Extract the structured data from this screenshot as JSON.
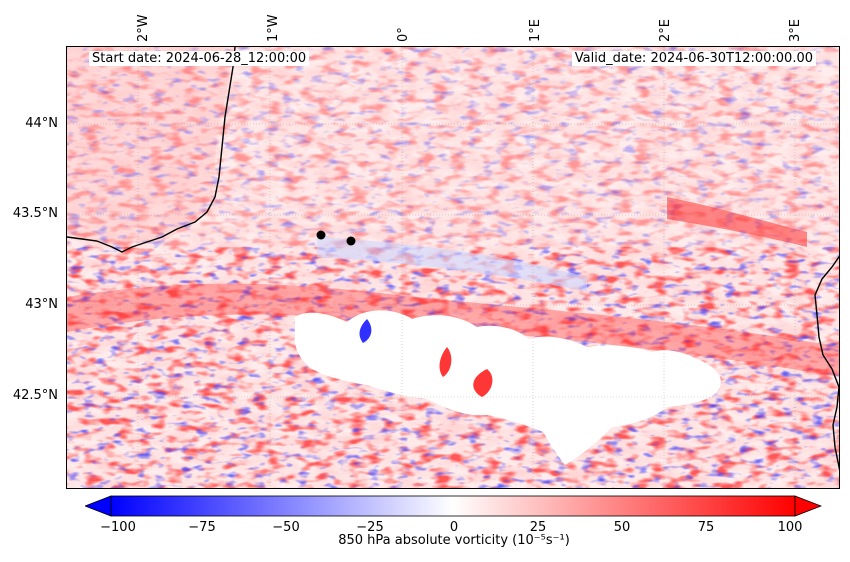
{
  "header": {
    "start_date": "Start date: 2024-06-28_12:00:00",
    "valid_date": "Valid_date: 2024-06-30T12:00:00.00"
  },
  "axes": {
    "top_ticks": [
      "2°W",
      "1°W",
      "0°",
      "1°E",
      "2°E",
      "3°E"
    ],
    "left_ticks": [
      "44°N",
      "43.5°N",
      "43°N",
      "42.5°N"
    ]
  },
  "colorbar": {
    "label": "850 hPa absolute vorticity (10$^{-5}$s$^{-1}$)",
    "label_display": "850 hPa absolute vorticity (10⁻⁵s⁻¹)",
    "ticks": [
      "−100",
      "−75",
      "−50",
      "−25",
      "0",
      "25",
      "50",
      "75",
      "100"
    ],
    "min": -100,
    "max": 100,
    "colors": {
      "negative": "#0000ff",
      "zero": "#ffffff",
      "positive": "#ff0000"
    }
  },
  "markers": [
    {
      "name": "marker-1"
    },
    {
      "name": "marker-2"
    }
  ]
}
